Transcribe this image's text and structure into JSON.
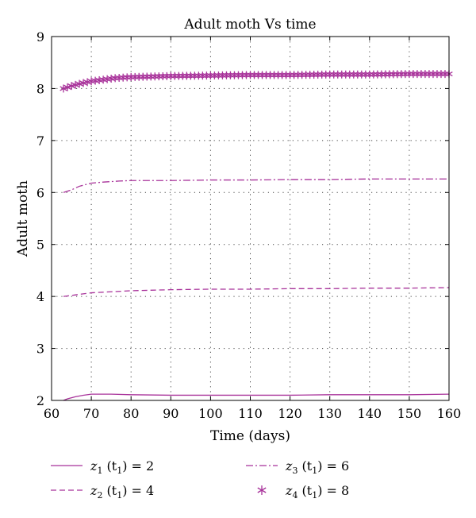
{
  "chart_data": {
    "type": "line",
    "title": "Adult moth Vs time",
    "xlabel": "Time (days)",
    "ylabel": "Adult moth",
    "xlim": [
      60,
      160
    ],
    "ylim": [
      2,
      9
    ],
    "xticks": [
      60,
      70,
      80,
      90,
      100,
      110,
      120,
      130,
      140,
      150,
      160
    ],
    "yticks": [
      2,
      3,
      4,
      5,
      6,
      7,
      8,
      9
    ],
    "grid": "dotted",
    "legend_position": "below-plot",
    "color": "#a8329a",
    "series": [
      {
        "name_var": "z",
        "name_sub": "1",
        "name_arg": "t",
        "name_arg_sub": "1",
        "name_value": "= 2",
        "style": "solid",
        "x": [
          63,
          64,
          66,
          68,
          70,
          72,
          75,
          80,
          90,
          100,
          110,
          120,
          130,
          140,
          150,
          160
        ],
        "y": [
          2.0,
          2.03,
          2.07,
          2.1,
          2.12,
          2.12,
          2.12,
          2.11,
          2.1,
          2.1,
          2.1,
          2.1,
          2.11,
          2.11,
          2.11,
          2.12
        ]
      },
      {
        "name_var": "z",
        "name_sub": "2",
        "name_arg": "t",
        "name_arg_sub": "1",
        "name_value": "= 4",
        "style": "dashed",
        "x": [
          63,
          66,
          70,
          75,
          80,
          90,
          100,
          110,
          120,
          130,
          140,
          150,
          160
        ],
        "y": [
          4.0,
          4.03,
          4.07,
          4.09,
          4.11,
          4.13,
          4.14,
          4.14,
          4.15,
          4.15,
          4.16,
          4.16,
          4.17
        ]
      },
      {
        "name_var": "z",
        "name_sub": "3",
        "name_arg": "t",
        "name_arg_sub": "1",
        "name_value": "= 6",
        "style": "dashdot",
        "x": [
          63,
          65,
          67,
          70,
          73,
          77,
          80,
          90,
          100,
          110,
          120,
          130,
          140,
          150,
          160
        ],
        "y": [
          6.0,
          6.05,
          6.12,
          6.18,
          6.2,
          6.22,
          6.23,
          6.23,
          6.24,
          6.24,
          6.25,
          6.25,
          6.26,
          6.26,
          6.26
        ]
      },
      {
        "name_var": "z",
        "name_sub": "4",
        "name_arg": "t",
        "name_arg_sub": "1",
        "name_value": "= 8",
        "style": "asterisk",
        "x": [
          63,
          65,
          67,
          70,
          73,
          76,
          80,
          85,
          90,
          100,
          110,
          120,
          130,
          140,
          150,
          160
        ],
        "y": [
          8.0,
          8.05,
          8.09,
          8.14,
          8.17,
          8.2,
          8.22,
          8.23,
          8.24,
          8.25,
          8.26,
          8.26,
          8.27,
          8.27,
          8.28,
          8.28
        ]
      }
    ]
  }
}
